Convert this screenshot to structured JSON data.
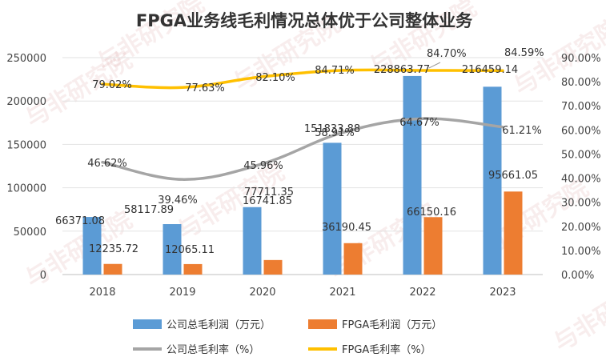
{
  "watermark": "与非研究院",
  "chart_data": {
    "type": "bar+line",
    "title": "FPGA业务线毛利情况总体优于公司整体业务",
    "categories": [
      "2018",
      "2019",
      "2020",
      "2021",
      "2022",
      "2023"
    ],
    "left_axis": {
      "ylim": [
        0,
        250000
      ],
      "ticks": [
        0,
        50000,
        100000,
        150000,
        200000,
        250000
      ],
      "tick_labels": [
        "0",
        "50000",
        "100000",
        "150000",
        "200000",
        "250000"
      ]
    },
    "right_axis": {
      "ylim": [
        0,
        90
      ],
      "ticks": [
        0,
        10,
        20,
        30,
        40,
        50,
        60,
        70,
        80,
        90
      ],
      "tick_labels": [
        "0.00%",
        "10.00%",
        "20.00%",
        "30.00%",
        "40.00%",
        "50.00%",
        "60.00%",
        "70.00%",
        "80.00%",
        "90.00%"
      ]
    },
    "series": [
      {
        "name": "公司总毛利润（万元）",
        "type": "bar",
        "axis": "left",
        "color": "#5b9bd5",
        "values": [
          66371.08,
          58117.89,
          77711.35,
          151833.88,
          228863.77,
          216459.14
        ],
        "labels": [
          "66371.08",
          "58117.89",
          "77711.35",
          "151833.88",
          "228863.77",
          "216459.14"
        ]
      },
      {
        "name": "FPGA毛利润（万元）",
        "type": "bar",
        "axis": "left",
        "color": "#ed7d31",
        "values": [
          12235.72,
          12065.11,
          16741.85,
          36190.45,
          66150.16,
          95661.05
        ],
        "labels": [
          "12235.72",
          "12065.11",
          "16741.85",
          "36190.45",
          "66150.16",
          "95661.05"
        ]
      },
      {
        "name": "公司总毛利率（%）",
        "type": "line",
        "smooth": true,
        "axis": "right",
        "color": "#a5a5a5",
        "values": [
          46.62,
          39.46,
          45.96,
          58.91,
          64.67,
          61.21
        ],
        "labels": [
          "46.62%",
          "39.46%",
          "45.96%",
          "58.91%",
          "64.67%",
          "61.21%"
        ]
      },
      {
        "name": "FPGA毛利率（%）",
        "type": "line",
        "smooth": true,
        "axis": "right",
        "color": "#ffc000",
        "values": [
          79.02,
          77.63,
          82.1,
          84.71,
          84.7,
          84.59
        ],
        "labels": [
          "79.02%",
          "77.63%",
          "82.10%",
          "84.71%",
          "84.70%",
          "84.59%"
        ]
      }
    ],
    "legend": "bottom"
  }
}
